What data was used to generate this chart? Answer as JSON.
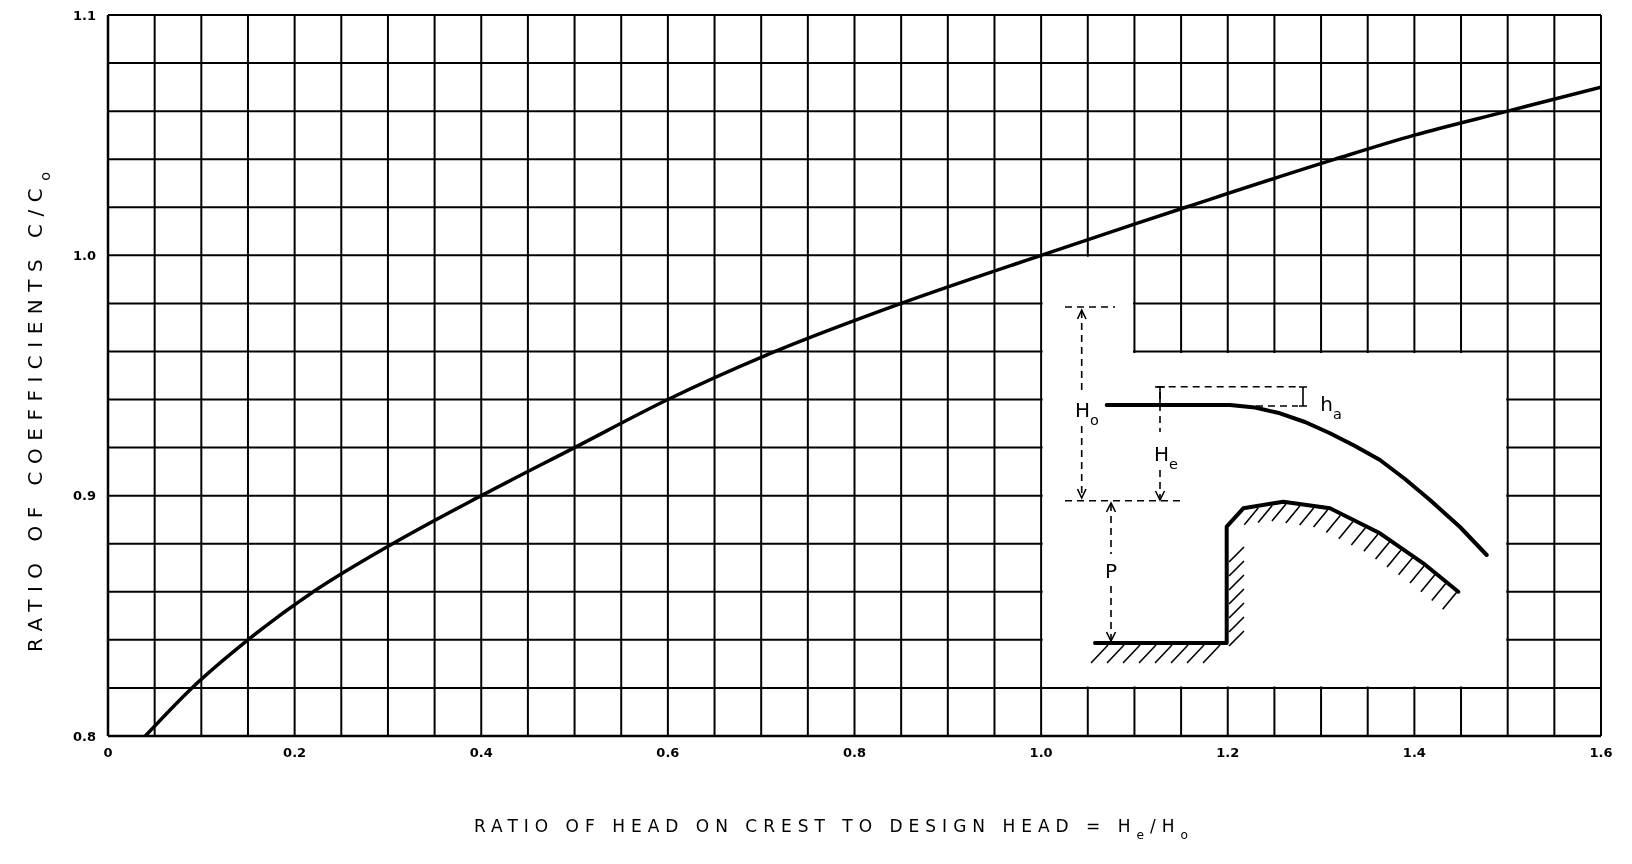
{
  "chart_data": {
    "type": "line",
    "xlabel": "RATIO OF HEAD ON CREST TO DESIGN HEAD = H$_{e}$/H$_{o}$",
    "ylabel": "RATIO OF COEFFICIENTS C/C$_{o}$",
    "annotations": [
      "H$_{o}$",
      "H$_{e}$",
      "h$_{a}$",
      "P"
    ],
    "x": [
      0.04,
      0.09,
      0.15,
      0.22,
      0.305,
      0.4,
      0.5,
      0.6,
      0.715,
      0.85,
      1.0,
      1.1,
      1.155,
      1.315,
      1.4,
      1.5,
      1.6
    ],
    "values": [
      0.8,
      0.82,
      0.84,
      0.86,
      0.88,
      0.9,
      0.92,
      0.94,
      0.96,
      0.98,
      1.0,
      1.013,
      1.02,
      1.04,
      1.05,
      1.06,
      1.07
    ],
    "color": "#000000",
    "xlim": [
      0,
      1.6
    ],
    "ylim": [
      0.8,
      1.1
    ],
    "xticks": [
      0,
      {
        "value": 0.05,
        "label": null
      },
      {
        "value": 0.1,
        "label": null
      },
      {
        "value": 0.15,
        "label": null
      },
      0.2,
      {
        "value": 0.25,
        "label": null
      },
      {
        "value": 0.3,
        "label": null
      },
      {
        "value": 0.35,
        "label": null
      },
      0.4,
      {
        "value": 0.45,
        "label": null
      },
      {
        "value": 0.5,
        "label": null
      },
      {
        "value": 0.55,
        "label": null
      },
      0.6,
      {
        "value": 0.65,
        "label": null
      },
      {
        "value": 0.7,
        "label": null
      },
      {
        "value": 0.75,
        "label": null
      },
      0.8,
      {
        "value": 0.85,
        "label": null
      },
      {
        "value": 0.9,
        "label": null
      },
      {
        "value": 0.95,
        "label": null
      },
      {
        "value": 1,
        "label": "1.0"
      },
      {
        "value": 1.05,
        "label": null
      },
      {
        "value": 1.1,
        "label": null
      },
      {
        "value": 1.15,
        "label": null
      },
      1.2,
      {
        "value": 1.25,
        "label": null
      },
      {
        "value": 1.3,
        "label": null
      },
      {
        "value": 1.35,
        "label": null
      },
      1.4,
      {
        "value": 1.45,
        "label": null
      },
      {
        "value": 1.5,
        "label": null
      },
      {
        "value": 1.55,
        "label": null
      },
      1.6
    ],
    "yticks": [
      0.8,
      {
        "value": 0.82,
        "label": null
      },
      {
        "value": 0.84,
        "label": null
      },
      {
        "value": 0.86,
        "label": null
      },
      {
        "value": 0.88,
        "label": null
      },
      0.9,
      {
        "value": 0.92,
        "label": null
      },
      {
        "value": 0.94,
        "label": null
      },
      {
        "value": 0.96,
        "label": null
      },
      {
        "value": 0.98,
        "label": null
      },
      {
        "value": 1,
        "label": "1.0"
      },
      {
        "value": 1.02,
        "label": null
      },
      {
        "value": 1.04,
        "label": null
      },
      {
        "value": 1.06,
        "label": null
      },
      {
        "value": 1.08,
        "label": null
      },
      1.1
    ],
    "grid": true
  }
}
